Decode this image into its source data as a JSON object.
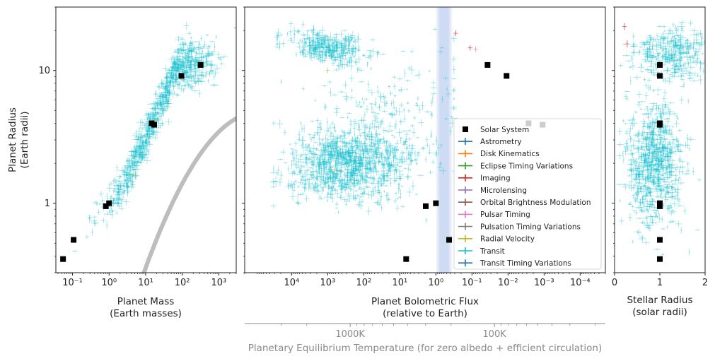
{
  "chart_data": [
    {
      "type": "scatter",
      "panel": "mass",
      "xlabel_line1": "Planet Mass",
      "xlabel_line2": "(Earth masses)",
      "ylabel_line1": "Planet Radius",
      "ylabel_line2": "(Earth radii)",
      "x_scale": "log",
      "y_scale": "log",
      "xlim": [
        0.035,
        3000
      ],
      "ylim": [
        0.3,
        30
      ],
      "x_ticks": [
        {
          "value": 0.1,
          "label": "10⁻¹"
        },
        {
          "value": 1,
          "label": "10⁰"
        },
        {
          "value": 10,
          "label": "10¹"
        },
        {
          "value": 100,
          "label": "10²"
        },
        {
          "value": 1000,
          "label": "10³"
        }
      ],
      "y_ticks": [
        {
          "value": 1,
          "label": "1"
        },
        {
          "value": 10,
          "label": "10"
        }
      ],
      "solar_system": [
        {
          "x": 0.055,
          "y": 0.38
        },
        {
          "x": 0.107,
          "y": 0.53
        },
        {
          "x": 0.815,
          "y": 0.95
        },
        {
          "x": 1.0,
          "y": 1.0
        },
        {
          "x": 14.5,
          "y": 4.0
        },
        {
          "x": 17.1,
          "y": 3.9
        },
        {
          "x": 95.2,
          "y": 9.1
        },
        {
          "x": 318,
          "y": 11.0
        }
      ],
      "curve": "mass-radius relation (grey)"
    },
    {
      "type": "scatter",
      "panel": "flux",
      "xlabel_line1": "Planet Bolometric Flux",
      "xlabel_line2": "(relative to Earth)",
      "secondary_xlabel": "Planetary Equilibrium Temperature (for zero albedo + efficient circulation)",
      "secondary_ticks": [
        {
          "value": 1000,
          "label": "1000K"
        },
        {
          "value": 100,
          "label": "100K"
        }
      ],
      "x_scale": "log",
      "x_reversed": true,
      "xlim": [
        200000,
        2e-05
      ],
      "ylim": [
        0.3,
        30
      ],
      "x_ticks": [
        {
          "value": 10000,
          "label": "10⁴"
        },
        {
          "value": 1000,
          "label": "10³"
        },
        {
          "value": 100,
          "label": "10²"
        },
        {
          "value": 10,
          "label": "10¹"
        },
        {
          "value": 1,
          "label": "10⁰"
        },
        {
          "value": 0.1,
          "label": "10⁻¹"
        },
        {
          "value": 0.01,
          "label": "10⁻²"
        },
        {
          "value": 0.001,
          "label": "10⁻³"
        },
        {
          "value": 0.0001,
          "label": "10⁻⁴"
        }
      ],
      "habitable_zone": [
        1.0,
        0.35
      ],
      "solar_system": [
        {
          "x": 6.67,
          "y": 0.38
        },
        {
          "x": 1.91,
          "y": 0.95
        },
        {
          "x": 1.0,
          "y": 1.0
        },
        {
          "x": 0.43,
          "y": 0.53
        },
        {
          "x": 0.037,
          "y": 11.0
        },
        {
          "x": 0.011,
          "y": 9.1
        },
        {
          "x": 0.0027,
          "y": 4.0
        },
        {
          "x": 0.0011,
          "y": 3.9
        }
      ],
      "legend": [
        {
          "name": "Solar System",
          "color": "#000000",
          "marker": "square"
        },
        {
          "name": "Astrometry",
          "color": "#1f77b4"
        },
        {
          "name": "Disk Kinematics",
          "color": "#ff7f0e"
        },
        {
          "name": "Eclipse Timing Variations",
          "color": "#2ca02c"
        },
        {
          "name": "Imaging",
          "color": "#d62728"
        },
        {
          "name": "Microlensing",
          "color": "#9467bd"
        },
        {
          "name": "Orbital Brightness Modulation",
          "color": "#8c564b"
        },
        {
          "name": "Pulsar Timing",
          "color": "#e377c2"
        },
        {
          "name": "Pulsation Timing Variations",
          "color": "#7f7f7f"
        },
        {
          "name": "Radial Velocity",
          "color": "#bcbd22"
        },
        {
          "name": "Transit",
          "color": "#17becf"
        },
        {
          "name": "Transit Timing Variations",
          "color": "#1f77b4"
        }
      ],
      "legend_position": "lower-right"
    },
    {
      "type": "scatter",
      "panel": "stellar",
      "xlabel_line1": "Stellar Radius",
      "xlabel_line2": "(solar radii)",
      "x_scale": "linear",
      "xlim": [
        0,
        2
      ],
      "ylim": [
        0.3,
        30
      ],
      "x_ticks": [
        {
          "value": 0,
          "label": "0"
        },
        {
          "value": 1,
          "label": "1"
        },
        {
          "value": 2,
          "label": "2"
        }
      ],
      "solar_system": [
        {
          "x": 1,
          "y": 0.38
        },
        {
          "x": 1,
          "y": 0.53
        },
        {
          "x": 1,
          "y": 0.95
        },
        {
          "x": 1,
          "y": 1.0
        },
        {
          "x": 1,
          "y": 3.9
        },
        {
          "x": 1,
          "y": 4.0
        },
        {
          "x": 1,
          "y": 9.1
        },
        {
          "x": 1,
          "y": 11.0
        }
      ]
    }
  ]
}
